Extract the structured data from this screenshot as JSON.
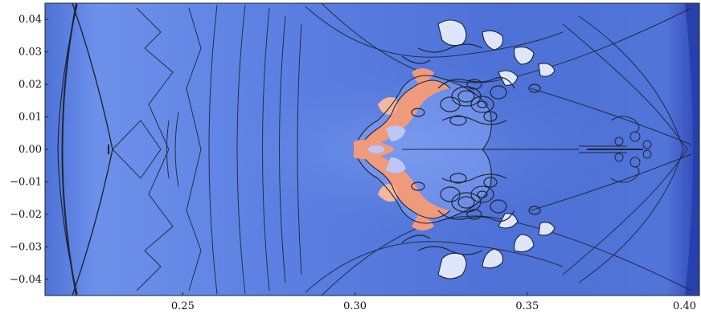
{
  "figure": {
    "type": "scientific-contour-plot",
    "y_ticks": [
      "0.04",
      "0.03",
      "0.02",
      "0.01",
      "0.00",
      "−0.01",
      "−0.02",
      "−0.03",
      "−0.04"
    ],
    "x_ticks": [
      "0.25",
      "0.30",
      "0.35",
      "0.40"
    ],
    "x_range": [
      0.21,
      0.4
    ],
    "y_range": [
      -0.045,
      0.045
    ]
  },
  "colors": {
    "background_blue": "#5a7ee0",
    "dark_blue": "#3b56c0",
    "light_blue": "#7f9ff2",
    "pale_blue": "#b9c8f6",
    "salmon": "#f09a7d",
    "salmon_light": "#f4b79e",
    "contour": "#1e2533"
  }
}
